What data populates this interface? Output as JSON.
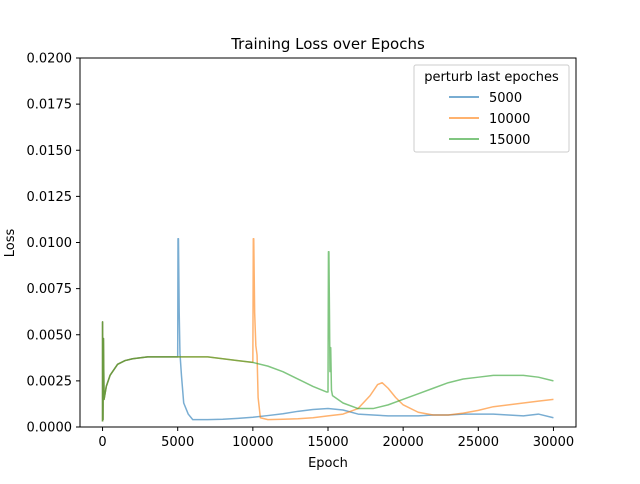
{
  "chart_data": {
    "type": "line",
    "title": "Training Loss over Epochs",
    "xlabel": "Epoch",
    "ylabel": "Loss",
    "xlim": [
      -1500,
      31500
    ],
    "ylim": [
      0,
      0.02
    ],
    "x_ticks": [
      0,
      5000,
      10000,
      15000,
      20000,
      25000,
      30000
    ],
    "x_tick_labels": [
      "0",
      "5000",
      "10000",
      "15000",
      "20000",
      "25000",
      "30000"
    ],
    "y_ticks": [
      0,
      0.0025,
      0.005,
      0.0075,
      0.01,
      0.0125,
      0.015,
      0.0175,
      0.02
    ],
    "y_tick_labels": [
      "0.0000",
      "0.0025",
      "0.0050",
      "0.0075",
      "0.0100",
      "0.0125",
      "0.0150",
      "0.0175",
      "0.0200"
    ],
    "grid": false,
    "legend": {
      "title": "perturb last epoches",
      "placement": "top-right"
    },
    "series": [
      {
        "name": "5000",
        "color": "#1f77b4",
        "points": [
          [
            0,
            0.0003
          ],
          [
            0,
            0.0057
          ],
          [
            30,
            0.0004
          ],
          [
            60,
            0.0048
          ],
          [
            100,
            0.0015
          ],
          [
            250,
            0.0022
          ],
          [
            500,
            0.0028
          ],
          [
            1000,
            0.0034
          ],
          [
            1500,
            0.0036
          ],
          [
            2000,
            0.0037
          ],
          [
            3000,
            0.0038
          ],
          [
            4000,
            0.0038
          ],
          [
            4900,
            0.0038
          ],
          [
            5000,
            0.0038
          ],
          [
            5020,
            0.0102
          ],
          [
            5050,
            0.0102
          ],
          [
            5100,
            0.0062
          ],
          [
            5150,
            0.004
          ],
          [
            5250,
            0.0028
          ],
          [
            5400,
            0.0013
          ],
          [
            5700,
            0.0007
          ],
          [
            6000,
            0.0004
          ],
          [
            7000,
            0.0004
          ],
          [
            8000,
            0.00042
          ],
          [
            9000,
            0.00047
          ],
          [
            10000,
            0.00053
          ],
          [
            11000,
            0.00062
          ],
          [
            12000,
            0.00072
          ],
          [
            13000,
            0.00085
          ],
          [
            14000,
            0.00095
          ],
          [
            15000,
            0.001
          ],
          [
            16000,
            0.00092
          ],
          [
            17000,
            0.0007
          ],
          [
            18000,
            0.00065
          ],
          [
            19000,
            0.0006
          ],
          [
            20000,
            0.0006
          ],
          [
            21000,
            0.0006
          ],
          [
            22000,
            0.00065
          ],
          [
            23000,
            0.00065
          ],
          [
            24000,
            0.0007
          ],
          [
            25000,
            0.0007
          ],
          [
            26000,
            0.0007
          ],
          [
            27000,
            0.00065
          ],
          [
            28000,
            0.0006
          ],
          [
            29000,
            0.0007
          ],
          [
            30000,
            0.0005
          ]
        ]
      },
      {
        "name": "10000",
        "color": "#ff7f0e",
        "points": [
          [
            0,
            0.0003
          ],
          [
            0,
            0.0057
          ],
          [
            30,
            0.0004
          ],
          [
            60,
            0.0048
          ],
          [
            100,
            0.0015
          ],
          [
            250,
            0.0022
          ],
          [
            500,
            0.0028
          ],
          [
            1000,
            0.0034
          ],
          [
            1500,
            0.0036
          ],
          [
            2000,
            0.0037
          ],
          [
            3000,
            0.0038
          ],
          [
            4000,
            0.0038
          ],
          [
            5000,
            0.0038
          ],
          [
            6000,
            0.0038
          ],
          [
            7000,
            0.0038
          ],
          [
            8000,
            0.0037
          ],
          [
            9000,
            0.0036
          ],
          [
            9950,
            0.0035
          ],
          [
            10000,
            0.0035
          ],
          [
            10030,
            0.0102
          ],
          [
            10060,
            0.0102
          ],
          [
            10120,
            0.0062
          ],
          [
            10200,
            0.0044
          ],
          [
            10280,
            0.0039
          ],
          [
            10350,
            0.0016
          ],
          [
            10500,
            0.0005
          ],
          [
            11000,
            0.0004
          ],
          [
            12000,
            0.00042
          ],
          [
            13000,
            0.00045
          ],
          [
            14000,
            0.0005
          ],
          [
            15000,
            0.0006
          ],
          [
            16000,
            0.0007
          ],
          [
            17000,
            0.001
          ],
          [
            17800,
            0.0017
          ],
          [
            18300,
            0.0023
          ],
          [
            18600,
            0.0024
          ],
          [
            19000,
            0.0021
          ],
          [
            19500,
            0.0016
          ],
          [
            20000,
            0.0012
          ],
          [
            21000,
            0.0008
          ],
          [
            22000,
            0.00065
          ],
          [
            23000,
            0.00065
          ],
          [
            24000,
            0.00075
          ],
          [
            25000,
            0.0009
          ],
          [
            26000,
            0.0011
          ],
          [
            27000,
            0.0012
          ],
          [
            28000,
            0.0013
          ],
          [
            29000,
            0.0014
          ],
          [
            30000,
            0.0015
          ]
        ]
      },
      {
        "name": "15000",
        "color": "#2ca02c",
        "points": [
          [
            0,
            0.0003
          ],
          [
            0,
            0.0057
          ],
          [
            30,
            0.0004
          ],
          [
            60,
            0.0048
          ],
          [
            100,
            0.0015
          ],
          [
            250,
            0.0022
          ],
          [
            500,
            0.0028
          ],
          [
            1000,
            0.0034
          ],
          [
            1500,
            0.0036
          ],
          [
            2000,
            0.0037
          ],
          [
            3000,
            0.0038
          ],
          [
            4000,
            0.0038
          ],
          [
            5000,
            0.0038
          ],
          [
            6000,
            0.0038
          ],
          [
            7000,
            0.0038
          ],
          [
            8000,
            0.0037
          ],
          [
            9000,
            0.0036
          ],
          [
            10000,
            0.0035
          ],
          [
            11000,
            0.0033
          ],
          [
            12000,
            0.003
          ],
          [
            13000,
            0.0026
          ],
          [
            14000,
            0.0022
          ],
          [
            14900,
            0.0019
          ],
          [
            15000,
            0.0019
          ],
          [
            15030,
            0.0095
          ],
          [
            15060,
            0.0095
          ],
          [
            15100,
            0.006
          ],
          [
            15130,
            0.003
          ],
          [
            15180,
            0.0043
          ],
          [
            15230,
            0.002
          ],
          [
            15300,
            0.0017
          ],
          [
            16000,
            0.0013
          ],
          [
            17000,
            0.001
          ],
          [
            18000,
            0.001
          ],
          [
            19000,
            0.0012
          ],
          [
            20000,
            0.0015
          ],
          [
            21000,
            0.0018
          ],
          [
            22000,
            0.0021
          ],
          [
            23000,
            0.0024
          ],
          [
            24000,
            0.0026
          ],
          [
            25000,
            0.0027
          ],
          [
            26000,
            0.0028
          ],
          [
            27000,
            0.0028
          ],
          [
            28000,
            0.0028
          ],
          [
            29000,
            0.0027
          ],
          [
            30000,
            0.0025
          ]
        ]
      }
    ]
  }
}
